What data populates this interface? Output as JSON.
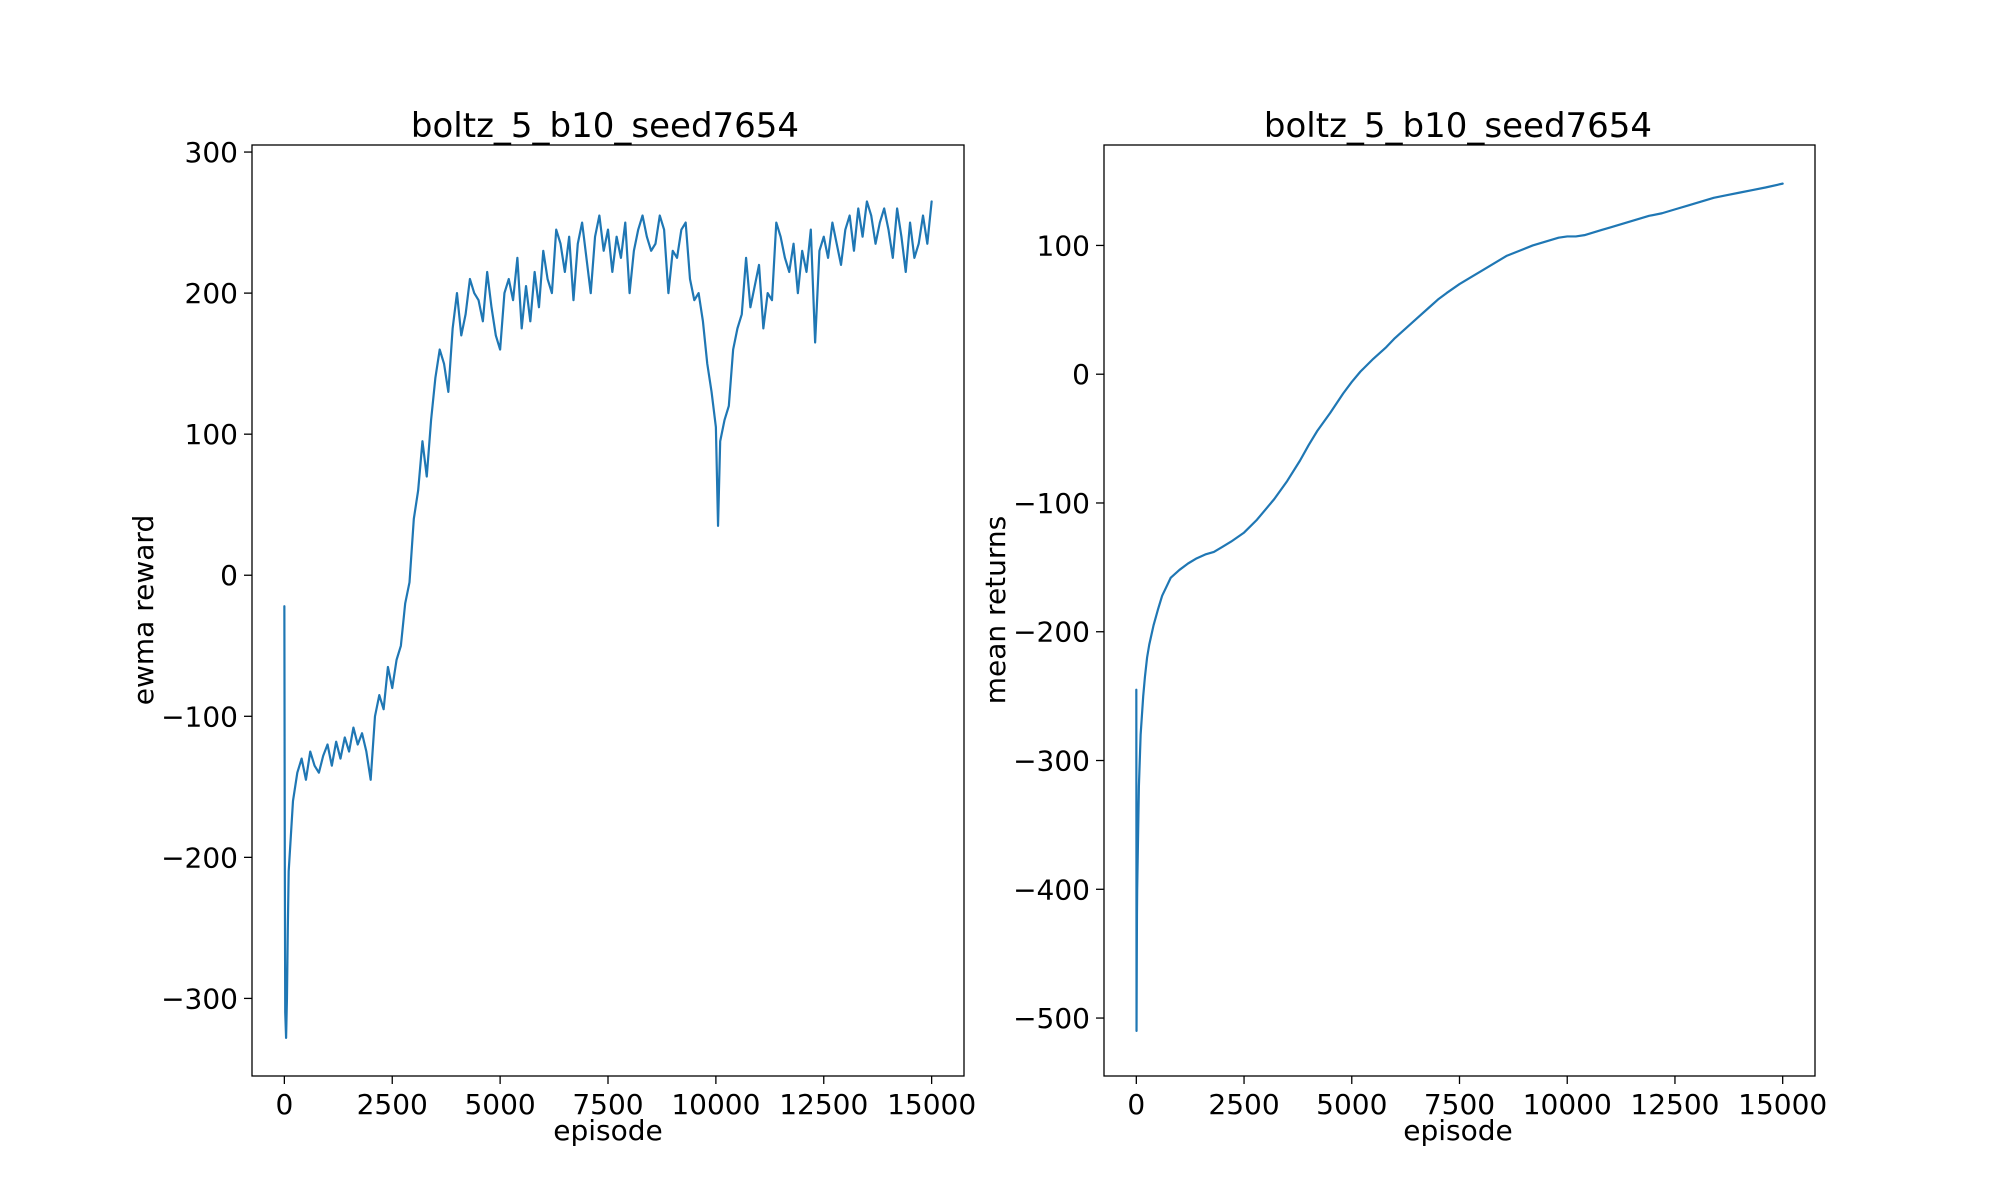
{
  "chart_data": [
    {
      "type": "line",
      "title": "boltz_5_b10_seed7654",
      "xlabel": "episode",
      "ylabel": "ewma reward",
      "xlim": [
        -750,
        15750
      ],
      "ylim": [
        -355,
        305
      ],
      "xticks": [
        0,
        2500,
        5000,
        7500,
        10000,
        12500,
        15000
      ],
      "xtick_labels": [
        "0",
        "2500",
        "5000",
        "7500",
        "10000",
        "12500",
        "15000"
      ],
      "yticks": [
        -300,
        -200,
        -100,
        0,
        100,
        200,
        300
      ],
      "ytick_labels": [
        "−300",
        "−200",
        "−100",
        "0",
        "100",
        "200",
        "300"
      ],
      "grid": false,
      "series": [
        {
          "color": "#1f77b4",
          "x": [
            0,
            10,
            20,
            40,
            60,
            80,
            100,
            150,
            200,
            300,
            400,
            500,
            600,
            700,
            800,
            900,
            1000,
            1100,
            1200,
            1300,
            1400,
            1500,
            1600,
            1700,
            1800,
            1900,
            2000,
            2100,
            2200,
            2300,
            2400,
            2500,
            2600,
            2700,
            2800,
            2900,
            3000,
            3100,
            3200,
            3300,
            3400,
            3500,
            3600,
            3700,
            3800,
            3900,
            4000,
            4100,
            4200,
            4300,
            4400,
            4500,
            4600,
            4700,
            4800,
            4900,
            5000,
            5100,
            5200,
            5300,
            5400,
            5500,
            5600,
            5700,
            5800,
            5900,
            6000,
            6100,
            6200,
            6300,
            6400,
            6500,
            6600,
            6700,
            6800,
            6900,
            7000,
            7100,
            7200,
            7300,
            7400,
            7500,
            7600,
            7700,
            7800,
            7900,
            8000,
            8100,
            8200,
            8300,
            8400,
            8500,
            8600,
            8700,
            8800,
            8900,
            9000,
            9100,
            9200,
            9300,
            9400,
            9500,
            9600,
            9700,
            9800,
            9900,
            10000,
            10050,
            10100,
            10200,
            10300,
            10400,
            10500,
            10600,
            10700,
            10800,
            10900,
            11000,
            11100,
            11200,
            11300,
            11400,
            11500,
            11600,
            11700,
            11800,
            11900,
            12000,
            12100,
            12200,
            12300,
            12400,
            12500,
            12600,
            12700,
            12800,
            12900,
            13000,
            13100,
            13200,
            13300,
            13400,
            13500,
            13600,
            13700,
            13800,
            13900,
            14000,
            14100,
            14200,
            14300,
            14400,
            14500,
            14600,
            14700,
            14800,
            14900,
            15000
          ],
          "y": [
            -22,
            -200,
            -310,
            -328,
            -300,
            -250,
            -210,
            -185,
            -160,
            -140,
            -130,
            -145,
            -125,
            -135,
            -140,
            -128,
            -120,
            -135,
            -118,
            -130,
            -115,
            -125,
            -108,
            -120,
            -112,
            -125,
            -145,
            -100,
            -85,
            -95,
            -65,
            -80,
            -60,
            -50,
            -20,
            -5,
            40,
            60,
            95,
            70,
            110,
            140,
            160,
            150,
            130,
            175,
            200,
            170,
            185,
            210,
            200,
            195,
            180,
            215,
            190,
            170,
            160,
            200,
            210,
            195,
            225,
            175,
            205,
            180,
            215,
            190,
            230,
            210,
            200,
            245,
            235,
            215,
            240,
            195,
            235,
            250,
            225,
            200,
            240,
            255,
            230,
            245,
            215,
            240,
            225,
            250,
            200,
            230,
            245,
            255,
            240,
            230,
            235,
            255,
            245,
            200,
            230,
            225,
            245,
            250,
            210,
            195,
            200,
            180,
            150,
            130,
            105,
            35,
            95,
            110,
            120,
            160,
            175,
            185,
            225,
            190,
            205,
            220,
            175,
            200,
            195,
            250,
            240,
            225,
            215,
            235,
            200,
            230,
            215,
            245,
            165,
            230,
            240,
            225,
            250,
            235,
            220,
            245,
            255,
            230,
            260,
            240,
            265,
            255,
            235,
            250,
            260,
            245,
            225,
            260,
            240,
            215,
            250,
            225,
            235,
            255,
            235,
            265
          ]
        }
      ]
    },
    {
      "type": "line",
      "title": "boltz_5_b10_seed7654",
      "xlabel": "episode",
      "ylabel": "mean returns",
      "xlim": [
        -750,
        15750
      ],
      "ylim": [
        -545,
        178
      ],
      "xticks": [
        0,
        2500,
        5000,
        7500,
        10000,
        12500,
        15000
      ],
      "xtick_labels": [
        "0",
        "2500",
        "5000",
        "7500",
        "10000",
        "12500",
        "15000"
      ],
      "yticks": [
        -500,
        -400,
        -300,
        -200,
        -100,
        0,
        100
      ],
      "ytick_labels": [
        "−500",
        "−400",
        "−300",
        "−200",
        "−100",
        "0",
        "100"
      ],
      "grid": false,
      "series": [
        {
          "color": "#1f77b4",
          "x": [
            0,
            5,
            10,
            15,
            20,
            30,
            40,
            50,
            60,
            80,
            100,
            130,
            160,
            200,
            250,
            300,
            400,
            500,
            600,
            700,
            800,
            1000,
            1200,
            1400,
            1600,
            1800,
            2000,
            2200,
            2500,
            2800,
            3000,
            3200,
            3500,
            3800,
            4000,
            4200,
            4500,
            4800,
            5000,
            5200,
            5500,
            5800,
            6000,
            6200,
            6500,
            6800,
            7000,
            7200,
            7500,
            7800,
            8000,
            8300,
            8600,
            8900,
            9200,
            9500,
            9800,
            10000,
            10200,
            10400,
            10600,
            10800,
            11000,
            11300,
            11600,
            11900,
            12200,
            12500,
            12800,
            13100,
            13400,
            13700,
            14000,
            14300,
            14600,
            15000
          ],
          "y": [
            -245,
            -510,
            -460,
            -420,
            -400,
            -380,
            -360,
            -340,
            -320,
            -300,
            -280,
            -265,
            -250,
            -235,
            -220,
            -210,
            -195,
            -183,
            -172,
            -165,
            -158,
            -152,
            -147,
            -143,
            -140,
            -138,
            -134,
            -130,
            -123,
            -113,
            -105,
            -97,
            -83,
            -67,
            -55,
            -44,
            -30,
            -15,
            -6,
            2,
            12,
            21,
            28,
            34,
            43,
            52,
            58,
            63,
            70,
            76,
            80,
            86,
            92,
            96,
            100,
            103,
            106,
            107,
            107,
            108,
            110,
            112,
            114,
            117,
            120,
            123,
            125,
            128,
            131,
            134,
            137,
            139,
            141,
            143,
            145,
            148
          ]
        }
      ]
    }
  ]
}
